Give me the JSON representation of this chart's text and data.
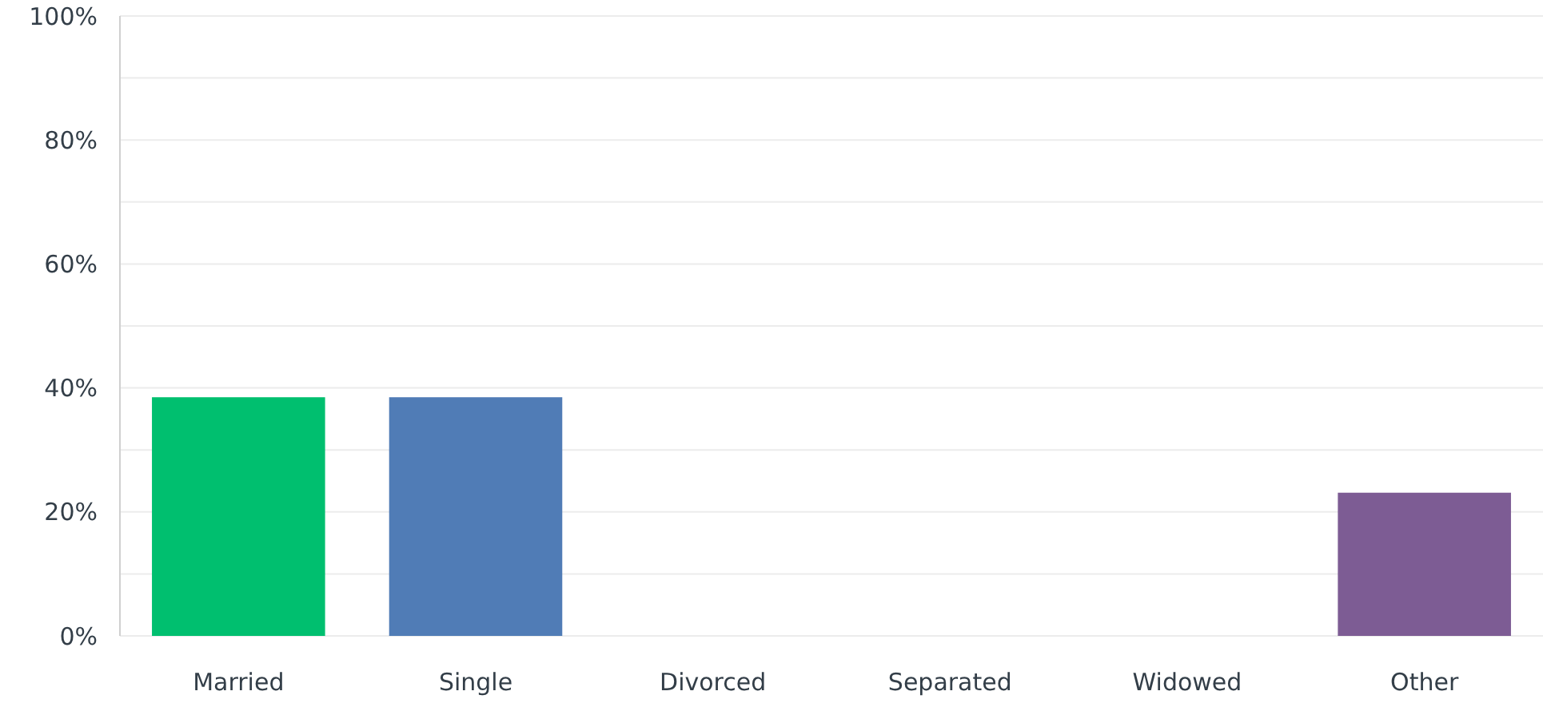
{
  "chart_data": {
    "type": "bar",
    "categories": [
      "Married",
      "Single",
      "Divorced",
      "Separated",
      "Widowed",
      "Other"
    ],
    "values": [
      38.5,
      38.5,
      0,
      0,
      0,
      23.1
    ],
    "colors": [
      "#00bf6f",
      "#507cb6",
      "#f05b24",
      "#f9be00",
      "#6bc8cd",
      "#7d5c94"
    ],
    "ylim": [
      0,
      100
    ],
    "yticks": [
      {
        "value": 0,
        "label": "0%"
      },
      {
        "value": 10,
        "label": null
      },
      {
        "value": 20,
        "label": "20%"
      },
      {
        "value": 30,
        "label": null
      },
      {
        "value": 40,
        "label": "40%"
      },
      {
        "value": 50,
        "label": null
      },
      {
        "value": 60,
        "label": "60%"
      },
      {
        "value": 70,
        "label": null
      },
      {
        "value": 80,
        "label": "80%"
      },
      {
        "value": 90,
        "label": null
      },
      {
        "value": 100,
        "label": "100%"
      }
    ],
    "grid": "y"
  }
}
